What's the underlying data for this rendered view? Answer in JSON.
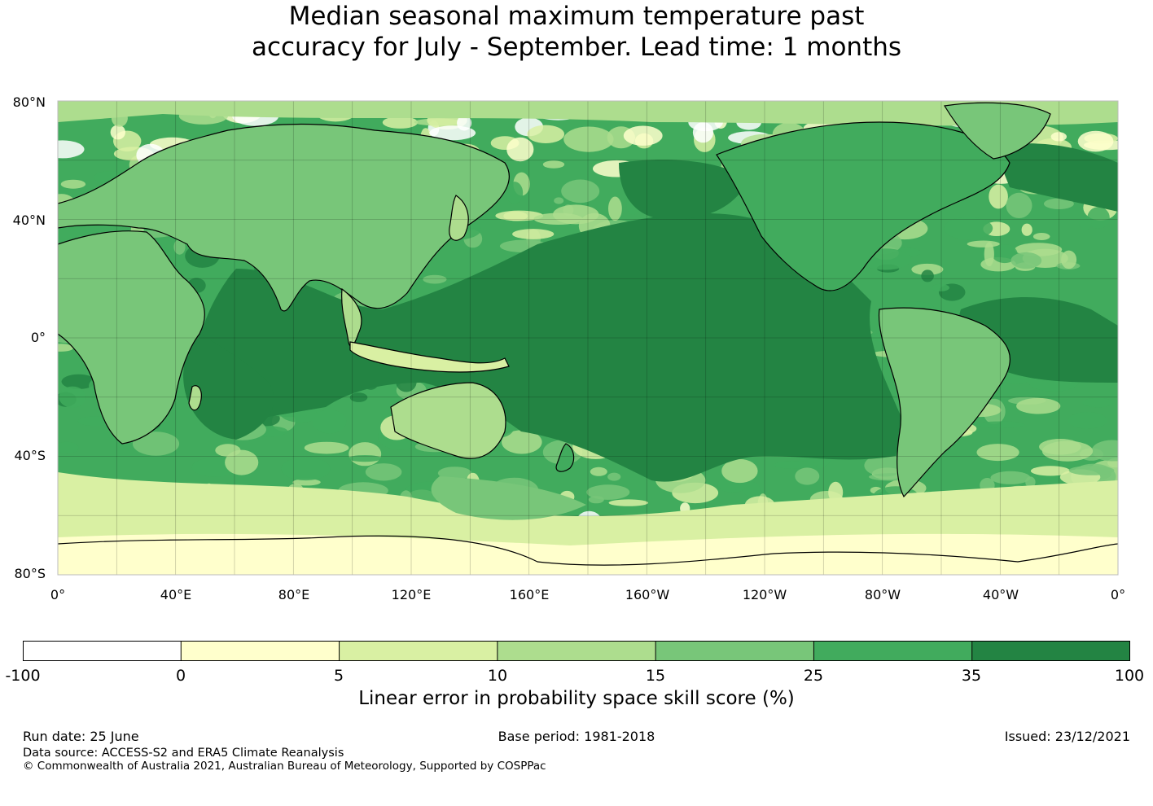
{
  "title": {
    "line1": "Median seasonal maximum temperature past",
    "line2": "accuracy for July - September. Lead time: 1 months"
  },
  "map": {
    "lat_labels": [
      "80°N",
      "40°N",
      "0°",
      "40°S",
      "80°S"
    ],
    "lon_labels": [
      "0°",
      "40°E",
      "80°E",
      "120°E",
      "160°E",
      "160°W",
      "120°W",
      "80°W",
      "40°W",
      "0°"
    ]
  },
  "colorbar": {
    "ticks": [
      "-100",
      "0",
      "5",
      "10",
      "15",
      "25",
      "35",
      "100"
    ],
    "colors": [
      "#ffffff",
      "#ffffcc",
      "#d9f0a3",
      "#addd8e",
      "#78c679",
      "#41ab5d",
      "#238443"
    ],
    "label": "Linear error in probability space skill score (%)"
  },
  "footer": {
    "run_date": "Run date: 25 June",
    "base_period": "Base period: 1981-2018",
    "issued": "Issued: 23/12/2021",
    "data_source": "Data source: ACCESS-S2 and ERA5 Climate Reanalysis",
    "copyright": "© Commonwealth of Australia 2021, Australian Bureau of Meteorology, Supported by COSPPac"
  }
}
